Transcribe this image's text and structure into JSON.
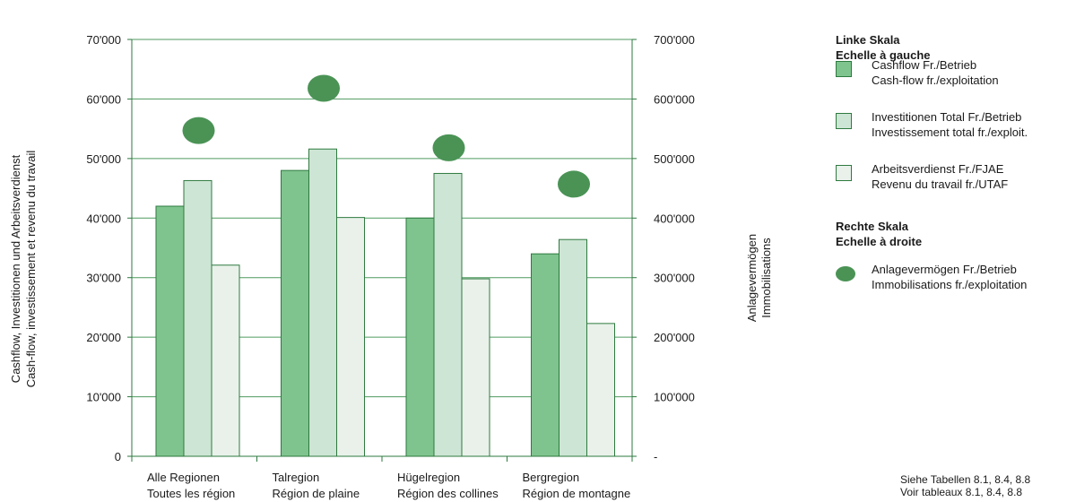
{
  "chart_data": {
    "type": "bar",
    "categories": [
      [
        "Alle Regionen",
        "Toutes les région"
      ],
      [
        "Talregion",
        "Région de plaine"
      ],
      [
        "Hügelregion",
        "Région des collines"
      ],
      [
        "Bergregion",
        "Région de montagne"
      ]
    ],
    "series": [
      {
        "name": "Cashflow Fr./Betrieb / Cash-flow fr./exploitation",
        "axis": "left",
        "color": "#7fc48e",
        "values": [
          42000,
          48000,
          40000,
          34000
        ]
      },
      {
        "name": "Investitionen Total Fr./Betrieb / Investissement total fr./exploit.",
        "axis": "left",
        "color": "#cde5d4",
        "values": [
          46300,
          51600,
          47500,
          36400
        ]
      },
      {
        "name": "Arbeitsverdienst Fr./FJAE / Revenu du travail fr./UTAF",
        "axis": "left",
        "color": "#e9f1ea",
        "values": [
          32100,
          40100,
          29800,
          22300
        ]
      },
      {
        "name": "Anlagevermögen Fr./Betrieb / Immobilisations fr./exploitation",
        "axis": "right",
        "type": "scatter",
        "color": "#4a9355",
        "values": [
          547000,
          618000,
          518000,
          457000
        ]
      }
    ],
    "ylabel_left": [
      "Cashflow, Investitionen und Arbeitsverdienst",
      "Cash-flow, investissement et revenu du travail"
    ],
    "ylabel_right": [
      "Anlagevermögen",
      "Immobilisations"
    ],
    "ylim_left": [
      0,
      70000
    ],
    "ylim_right": [
      0,
      700000
    ],
    "yticks_left": [
      "0",
      "10'000",
      "20'000",
      "30'000",
      "40'000",
      "50'000",
      "60'000",
      "70'000"
    ],
    "yticks_right": [
      "-",
      "100'000",
      "200'000",
      "300'000",
      "400'000",
      "500'000",
      "600'000",
      "700'000"
    ],
    "grid": true,
    "legend_position": "right"
  },
  "legend": {
    "left_scale_title": [
      "Linke Skala",
      "Echelle à gauche"
    ],
    "right_scale_title": [
      "Rechte Skala",
      "Echelle à droite"
    ],
    "items": [
      {
        "line1": "Cashflow Fr./Betrieb",
        "line2": "Cash-flow fr./exploitation",
        "color": "#7fc48e"
      },
      {
        "line1": "Investitionen Total Fr./Betrieb",
        "line2": "Investissement total fr./exploit.",
        "color": "#cde5d4"
      },
      {
        "line1": "Arbeitsverdienst Fr./FJAE",
        "line2": "Revenu du travail fr./UTAF",
        "color": "#e9f1ea"
      },
      {
        "line1": "Anlagevermögen Fr./Betrieb",
        "line2": "Immobilisations fr./exploitation",
        "color": "#4a9355"
      }
    ]
  },
  "source": [
    "Siehe Tabellen 8.1, 8.4, 8.8",
    "Voir tableaux 8.1, 8.4, 8.8"
  ]
}
